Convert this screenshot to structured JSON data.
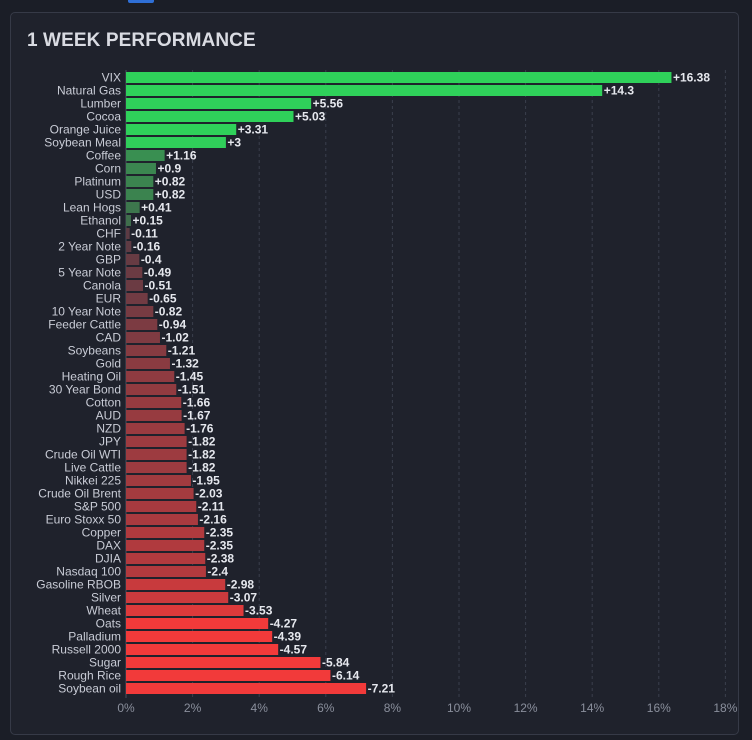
{
  "chart_data": {
    "type": "bar",
    "orientation": "horizontal",
    "title": "1 WEEK PERFORMANCE",
    "xlim": [
      0,
      18
    ],
    "x_ticks": [
      "0%",
      "2%",
      "4%",
      "6%",
      "8%",
      "10%",
      "12%",
      "14%",
      "16%",
      "18%"
    ],
    "grid": true,
    "bars_show_absolute_magnitude": true,
    "categories": [
      "VIX",
      "Natural Gas",
      "Lumber",
      "Cocoa",
      "Orange Juice",
      "Soybean Meal",
      "Coffee",
      "Corn",
      "Platinum",
      "USD",
      "Lean Hogs",
      "Ethanol",
      "CHF",
      "2 Year Note",
      "GBP",
      "5 Year Note",
      "Canola",
      "EUR",
      "10 Year Note",
      "Feeder Cattle",
      "CAD",
      "Soybeans",
      "Gold",
      "Heating Oil",
      "30 Year Bond",
      "Cotton",
      "AUD",
      "NZD",
      "JPY",
      "Crude Oil WTI",
      "Live Cattle",
      "Nikkei 225",
      "Crude Oil Brent",
      "S&P 500",
      "Euro Stoxx 50",
      "Copper",
      "DAX",
      "DJIA",
      "Nasdaq 100",
      "Gasoline RBOB",
      "Silver",
      "Wheat",
      "Oats",
      "Palladium",
      "Russell 2000",
      "Sugar",
      "Rough Rice",
      "Soybean oil"
    ],
    "values": [
      16.38,
      14.3,
      5.56,
      5.03,
      3.31,
      3,
      1.16,
      0.9,
      0.82,
      0.82,
      0.41,
      0.15,
      -0.11,
      -0.16,
      -0.4,
      -0.49,
      -0.51,
      -0.65,
      -0.82,
      -0.94,
      -1.02,
      -1.21,
      -1.32,
      -1.45,
      -1.51,
      -1.66,
      -1.67,
      -1.76,
      -1.82,
      -1.82,
      -1.82,
      -1.95,
      -2.03,
      -2.11,
      -2.16,
      -2.35,
      -2.35,
      -2.38,
      -2.4,
      -2.98,
      -3.07,
      -3.53,
      -4.27,
      -4.39,
      -4.57,
      -5.84,
      -6.14,
      -7.21
    ],
    "value_labels": [
      "+16.38",
      "+14.3",
      "+5.56",
      "+5.03",
      "+3.31",
      "+3",
      "+1.16",
      "+0.9",
      "+0.82",
      "+0.82",
      "+0.41",
      "+0.15",
      "-0.11",
      "-0.16",
      "-0.4",
      "-0.49",
      "-0.51",
      "-0.65",
      "-0.82",
      "-0.94",
      "-1.02",
      "-1.21",
      "-1.32",
      "-1.45",
      "-1.51",
      "-1.66",
      "-1.67",
      "-1.76",
      "-1.82",
      "-1.82",
      "-1.82",
      "-1.95",
      "-2.03",
      "-2.11",
      "-2.16",
      "-2.35",
      "-2.35",
      "-2.38",
      "-2.4",
      "-2.98",
      "-3.07",
      "-3.53",
      "-4.27",
      "-4.39",
      "-4.57",
      "-5.84",
      "-6.14",
      "-7.21"
    ],
    "colors": {
      "positive_strong": "#2fd15a",
      "positive_weak": "#3f6b4c",
      "negative_weak": "#5c3b44",
      "negative_strong": "#f23a3a"
    }
  }
}
